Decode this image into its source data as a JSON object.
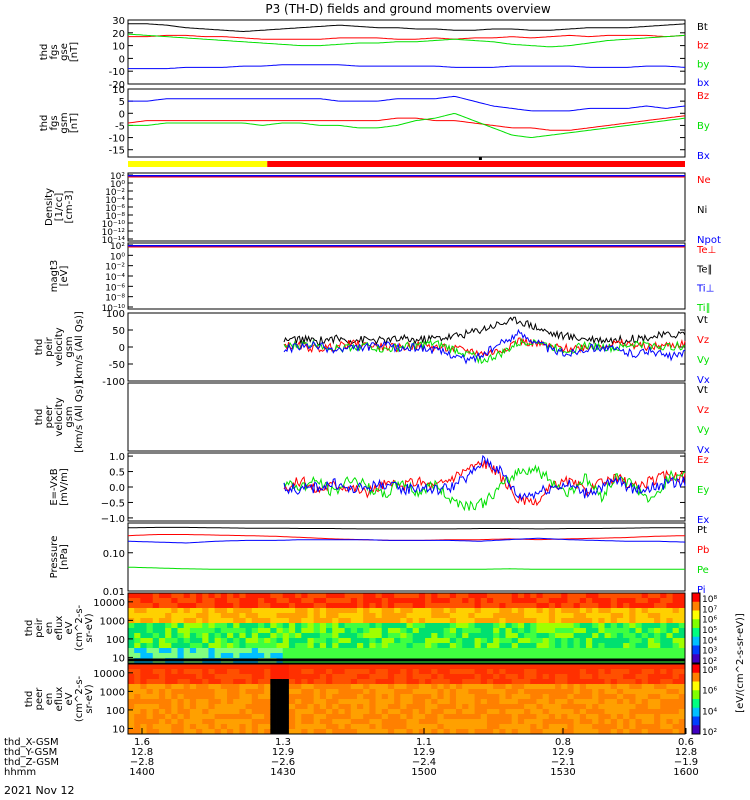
{
  "title": "P3 (TH-D) fields and ground moments overview",
  "date_label": "2021 Nov 12",
  "colors": {
    "black": "#000000",
    "red": "#ff0000",
    "green": "#00e000",
    "blue": "#0000ff",
    "yellow": "#ffff00"
  },
  "chart_data": [
    {
      "id": "fgs-gse",
      "type": "line",
      "ylabel": [
        "thd",
        "fgs",
        "gse",
        "[nT]"
      ],
      "ylim": [
        -20,
        30
      ],
      "ticks": [
        30,
        20,
        10,
        0,
        -10,
        -20
      ],
      "series": [
        {
          "name": "Bt",
          "color": "#000000",
          "values": [
            27,
            27,
            26,
            24,
            23,
            22,
            21,
            22,
            23,
            24,
            25,
            26,
            25,
            24,
            24,
            23,
            23,
            22,
            22,
            23,
            23,
            22,
            22,
            23,
            24,
            24,
            24,
            25,
            26,
            27
          ]
        },
        {
          "name": "bz",
          "color": "#ff0000",
          "values": [
            17,
            17,
            18,
            18,
            17,
            17,
            16,
            15,
            15,
            15,
            15,
            16,
            16,
            16,
            15,
            15,
            16,
            15,
            16,
            16,
            17,
            16,
            17,
            18,
            17,
            18,
            18,
            18,
            17,
            18
          ]
        },
        {
          "name": "by",
          "color": "#00e000",
          "values": [
            19,
            18,
            17,
            16,
            15,
            14,
            13,
            12,
            11,
            10,
            10,
            11,
            12,
            12,
            13,
            13,
            14,
            15,
            14,
            13,
            11,
            10,
            9,
            10,
            12,
            14,
            15,
            16,
            17,
            18
          ]
        },
        {
          "name": "bx",
          "color": "#0000ff",
          "values": [
            -8,
            -8,
            -8,
            -7,
            -7,
            -7,
            -6,
            -6,
            -5,
            -5,
            -5,
            -5,
            -6,
            -6,
            -6,
            -6,
            -6,
            -7,
            -7,
            -7,
            -6,
            -6,
            -6,
            -6,
            -7,
            -7,
            -7,
            -6,
            -6,
            -7
          ]
        }
      ]
    },
    {
      "id": "fgs-gsm",
      "type": "line",
      "ylabel": [
        "thd",
        "fgs",
        "gsm",
        "[nT]"
      ],
      "ylim": [
        -18,
        10
      ],
      "ticks": [
        10,
        5,
        0,
        -5,
        -10,
        -15
      ],
      "series": [
        {
          "name": "Bz",
          "color": "#ff0000",
          "values": [
            -4,
            -3,
            -3,
            -3,
            -3,
            -3,
            -3,
            -3,
            -3,
            -3,
            -3,
            -3,
            -3,
            -3,
            -2,
            -2,
            -3,
            -3,
            -4,
            -5,
            -6,
            -6,
            -7,
            -7,
            -6,
            -5,
            -4,
            -3,
            -2,
            -1
          ]
        },
        {
          "name": "By",
          "color": "#00e000",
          "values": [
            -5,
            -5,
            -4,
            -4,
            -4,
            -4,
            -4,
            -5,
            -4,
            -4,
            -5,
            -5,
            -6,
            -6,
            -5,
            -3,
            -2,
            0,
            -3,
            -6,
            -9,
            -10,
            -9,
            -8,
            -7,
            -6,
            -5,
            -4,
            -3,
            -2
          ]
        },
        {
          "name": "Bx",
          "color": "#0000ff",
          "values": [
            5,
            5,
            6,
            6,
            6,
            6,
            6,
            6,
            6,
            6,
            6,
            5,
            5,
            5,
            6,
            6,
            6,
            7,
            5,
            3,
            2,
            1,
            1,
            1,
            2,
            2,
            2,
            3,
            2,
            3
          ]
        }
      ]
    },
    {
      "id": "density",
      "type": "line",
      "ylabel": [
        "Density",
        "[1/cc]",
        "[cm-3]"
      ],
      "ylim": [
        -14,
        2
      ],
      "log": true,
      "tick_labels": [
        "10²",
        "10⁰",
        "10⁻²",
        "10⁻⁴",
        "10⁻⁶",
        "10⁻⁸",
        "10⁻¹⁰",
        "10⁻¹²",
        "10⁻¹⁴"
      ],
      "series": [
        {
          "name": "Ne",
          "color": "#ff0000",
          "values": []
        },
        {
          "name": "Ni",
          "color": "#000000",
          "values": []
        },
        {
          "name": "Npot",
          "color": "#0000ff",
          "values": []
        }
      ]
    },
    {
      "id": "temperature",
      "type": "line",
      "ylabel": [
        "magt3",
        "[eV]"
      ],
      "ylim": [
        -10,
        2
      ],
      "log": true,
      "tick_labels": [
        "10²",
        "10⁰",
        "10⁻²",
        "10⁻⁴",
        "10⁻⁶",
        "10⁻⁸",
        "10⁻¹⁰"
      ],
      "series": [
        {
          "name": "Te⊥",
          "color": "#ff0000",
          "values": []
        },
        {
          "name": "Te∥",
          "color": "#000000",
          "values": []
        },
        {
          "name": "Ti⊥",
          "color": "#0000ff",
          "values": []
        },
        {
          "name": "Ti∥",
          "color": "#00e000",
          "values": []
        }
      ]
    },
    {
      "id": "peir-velocity",
      "type": "line",
      "ylabel": [
        "thd",
        "peir",
        "velocity",
        "gsm",
        "[km/s (All Qs)]"
      ],
      "ylim": [
        -100,
        100
      ],
      "ticks": [
        100,
        50,
        0,
        -50,
        -100
      ],
      "x_start": 0.28,
      "series": [
        {
          "name": "Vt",
          "color": "#000000",
          "values": [
            20,
            22,
            18,
            25,
            20,
            22,
            18,
            24,
            20,
            26,
            30,
            40,
            55,
            70,
            80,
            60,
            40,
            30,
            25,
            22,
            20,
            25,
            30,
            35,
            40
          ]
        },
        {
          "name": "Vz",
          "color": "#ff0000",
          "values": [
            5,
            2,
            -5,
            0,
            10,
            5,
            0,
            -2,
            5,
            0,
            -5,
            -10,
            -20,
            -10,
            20,
            10,
            0,
            -5,
            0,
            5,
            10,
            5,
            0,
            5,
            10
          ]
        },
        {
          "name": "Vy",
          "color": "#00e000",
          "values": [
            0,
            5,
            10,
            -5,
            0,
            5,
            -10,
            0,
            5,
            10,
            -5,
            -20,
            -40,
            -20,
            10,
            20,
            0,
            -10,
            5,
            0,
            -5,
            10,
            5,
            0,
            5
          ]
        },
        {
          "name": "Vx",
          "color": "#0000ff",
          "values": [
            -5,
            0,
            5,
            -10,
            -5,
            0,
            5,
            -5,
            0,
            -10,
            -20,
            -40,
            -20,
            10,
            40,
            20,
            -10,
            -20,
            -5,
            0,
            -10,
            -20,
            -10,
            -30,
            -20
          ]
        }
      ]
    },
    {
      "id": "peer-velocity",
      "type": "line",
      "ylabel": [
        "thd",
        "peer",
        "velocity",
        "gsm",
        "[km/s (All Qs)]"
      ],
      "series": [
        {
          "name": "Vt",
          "color": "#000000",
          "values": []
        },
        {
          "name": "Vz",
          "color": "#ff0000",
          "values": []
        },
        {
          "name": "Vy",
          "color": "#00e000",
          "values": []
        },
        {
          "name": "Vx",
          "color": "#0000ff",
          "values": []
        }
      ]
    },
    {
      "id": "efield",
      "type": "line",
      "ylabel": [
        "E=-VxB",
        "[mV/m]"
      ],
      "ylim": [
        -1.1,
        1.1
      ],
      "ticks": [
        1.0,
        0.5,
        0.0,
        -0.5,
        -1.0
      ],
      "tick_labels": [
        "1.0",
        "0.5",
        "0.0",
        "−0.5",
        "−1.0"
      ],
      "x_start": 0.28,
      "series": [
        {
          "name": "Ez",
          "color": "#ff0000",
          "values": [
            0,
            0.2,
            -0.1,
            0.1,
            0,
            -0.2,
            0.1,
            0,
            0.2,
            0,
            0.3,
            0.6,
            0.8,
            0.3,
            -0.4,
            -0.6,
            0,
            0.2,
            -0.1,
            0.1,
            0.3,
            0,
            0.2,
            0.4,
            0.3
          ]
        },
        {
          "name": "Ey",
          "color": "#00e000",
          "values": [
            0.1,
            0,
            0.2,
            -0.2,
            0.3,
            0,
            -0.3,
            0.2,
            -0.2,
            0.1,
            -0.4,
            -0.6,
            -0.5,
            0,
            0.5,
            0.6,
            0.2,
            -0.2,
            0.3,
            -0.3,
            0.4,
            0,
            -0.5,
            0.3,
            0.5
          ]
        },
        {
          "name": "Ex",
          "color": "#0000ff",
          "values": [
            0,
            -0.1,
            0,
            0.1,
            -0.1,
            0,
            0.1,
            -0.1,
            0,
            -0.1,
            0,
            0.3,
            0.9,
            0.5,
            -0.3,
            -0.2,
            0,
            0.1,
            -0.2,
            0,
            0.2,
            -0.1,
            0,
            0.1,
            0.2
          ]
        }
      ]
    },
    {
      "id": "pressure",
      "type": "line",
      "ylabel": [
        "Pressure",
        "[nPa]"
      ],
      "ylim": [
        0.01,
        0.6
      ],
      "log": true,
      "ticks": [
        0.1,
        0.01
      ],
      "tick_labels": [
        "0.10",
        "0.01"
      ],
      "series": [
        {
          "name": "Pt",
          "color": "#000000",
          "values": [
            0.45,
            0.46,
            0.46,
            0.45,
            0.44,
            0.44,
            0.43,
            0.43,
            0.42,
            0.42,
            0.42,
            0.42,
            0.43,
            0.43,
            0.42,
            0.43,
            0.43,
            0.44,
            0.45,
            0.45
          ]
        },
        {
          "name": "Pb",
          "color": "#ff0000",
          "values": [
            0.28,
            0.3,
            0.3,
            0.29,
            0.28,
            0.27,
            0.25,
            0.23,
            0.22,
            0.21,
            0.21,
            0.22,
            0.22,
            0.23,
            0.22,
            0.23,
            0.24,
            0.25,
            0.27,
            0.28
          ]
        },
        {
          "name": "Pe",
          "color": "#00e000",
          "values": [
            0.042,
            0.04,
            0.038,
            0.037,
            0.037,
            0.037,
            0.037,
            0.037,
            0.037,
            0.037,
            0.037,
            0.037,
            0.037,
            0.038,
            0.037,
            0.037,
            0.037,
            0.037,
            0.037,
            0.037
          ]
        },
        {
          "name": "Pi",
          "color": "#0000ff",
          "values": [
            0.2,
            0.19,
            0.18,
            0.2,
            0.21,
            0.21,
            0.22,
            0.22,
            0.22,
            0.21,
            0.21,
            0.21,
            0.2,
            0.22,
            0.24,
            0.22,
            0.21,
            0.2,
            0.2,
            0.19
          ]
        }
      ]
    },
    {
      "id": "peir-spectrogram",
      "type": "heatmap",
      "ylabel": [
        "thd",
        "peir",
        "en",
        "eflux",
        "eV",
        "(cm^2-s-",
        "sr-eV)"
      ],
      "ylim": [
        5,
        30000
      ],
      "ticks": [
        10000,
        1000,
        100,
        10
      ],
      "tick_labels": [
        "10000",
        "1000",
        "100",
        "10"
      ]
    },
    {
      "id": "peer-spectrogram",
      "type": "heatmap",
      "ylabel": [
        "thd",
        "peer",
        "en",
        "eflux",
        "eV",
        "(cm^2-s-",
        "sr-eV)"
      ],
      "ylim": [
        5,
        30000
      ],
      "ticks": [
        10000,
        1000,
        100,
        10
      ],
      "tick_labels": [
        "10000",
        "1000",
        "100",
        "10"
      ]
    }
  ],
  "colorbar": {
    "label": "[eV/(cm^2-s-sr-eV)]",
    "label2": "[eV/(cm^2-s-sr-eV) (All Qs)]",
    "upper_labels": [
      "10⁸",
      "10⁷",
      "10⁶",
      "10⁵",
      "10⁴",
      "10³",
      "10²"
    ],
    "lower_labels": [
      "10⁸",
      "10⁶",
      "10⁴",
      "10²"
    ]
  },
  "x_axis": {
    "row_labels": [
      "thd_X-GSM",
      "thd_Y-GSM",
      "thd_Z-GSM",
      "hhmm"
    ],
    "columns": [
      {
        "values": [
          "1.6",
          "12.8",
          "−2.8",
          "1400"
        ]
      },
      {
        "values": [
          "1.3",
          "12.9",
          "−2.6",
          "1430"
        ]
      },
      {
        "values": [
          "1.1",
          "12.9",
          "−2.4",
          "1500"
        ]
      },
      {
        "values": [
          "0.8",
          "12.9",
          "−2.1",
          "1530"
        ]
      },
      {
        "values": [
          "0.6",
          "12.8",
          "−1.9",
          "1600"
        ]
      }
    ]
  }
}
